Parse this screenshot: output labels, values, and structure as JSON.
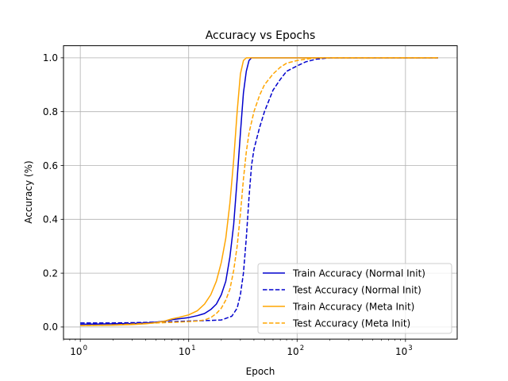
{
  "chart_data": {
    "type": "line",
    "title": "Accuracy vs Epochs",
    "xlabel": "Epoch",
    "ylabel": "Accuracy (%)",
    "xscale": "log",
    "xlim": [
      0.7,
      3000
    ],
    "ylim": [
      -0.045,
      1.045
    ],
    "grid": true,
    "legend_position": "lower-right",
    "x_ticks": [
      {
        "value": 1,
        "base": "10",
        "exp": "0"
      },
      {
        "value": 10,
        "base": "10",
        "exp": "1"
      },
      {
        "value": 100,
        "base": "10",
        "exp": "2"
      },
      {
        "value": 1000,
        "base": "10",
        "exp": "3"
      }
    ],
    "y_ticks": [
      {
        "value": 0.0,
        "label": "0.0"
      },
      {
        "value": 0.2,
        "label": "0.2"
      },
      {
        "value": 0.4,
        "label": "0.4"
      },
      {
        "value": 0.6,
        "label": "0.6"
      },
      {
        "value": 0.8,
        "label": "0.8"
      },
      {
        "value": 1.0,
        "label": "1.0"
      }
    ],
    "series": [
      {
        "name": "Train Accuracy (Normal Init)",
        "color": "#0000cd",
        "dash": "solid",
        "x": [
          1,
          2,
          3,
          4,
          5,
          6,
          7,
          8,
          10,
          12,
          14,
          16,
          18,
          20,
          22,
          24,
          26,
          28,
          30,
          32,
          34,
          36,
          38,
          40,
          50,
          100,
          1000,
          2000
        ],
        "y": [
          0.01,
          0.012,
          0.013,
          0.015,
          0.018,
          0.022,
          0.027,
          0.03,
          0.035,
          0.042,
          0.05,
          0.065,
          0.085,
          0.12,
          0.17,
          0.26,
          0.38,
          0.55,
          0.72,
          0.87,
          0.95,
          0.99,
          1.0,
          1.0,
          1.0,
          1.0,
          1.0,
          1.0
        ]
      },
      {
        "name": "Test Accuracy (Normal Init)",
        "color": "#0000cd",
        "dash": "dashed",
        "x": [
          1,
          2,
          3,
          5,
          10,
          15,
          20,
          25,
          28,
          30,
          32,
          34,
          36,
          38,
          40,
          45,
          50,
          60,
          70,
          80,
          100,
          120,
          150,
          200,
          300,
          1000,
          2000
        ],
        "y": [
          0.015,
          0.015,
          0.016,
          0.018,
          0.022,
          0.024,
          0.026,
          0.04,
          0.07,
          0.12,
          0.2,
          0.33,
          0.48,
          0.6,
          0.66,
          0.74,
          0.8,
          0.88,
          0.92,
          0.95,
          0.97,
          0.985,
          0.995,
          1.0,
          1.0,
          1.0,
          1.0
        ]
      },
      {
        "name": "Train Accuracy (Meta Init)",
        "color": "#ffa500",
        "dash": "solid",
        "x": [
          1,
          2,
          3,
          4,
          5,
          6,
          7,
          8,
          10,
          12,
          14,
          16,
          18,
          20,
          22,
          24,
          26,
          28,
          30,
          32,
          34,
          36,
          40,
          50,
          100,
          1000,
          2000
        ],
        "y": [
          0.005,
          0.007,
          0.009,
          0.012,
          0.016,
          0.022,
          0.03,
          0.035,
          0.045,
          0.06,
          0.085,
          0.12,
          0.17,
          0.24,
          0.33,
          0.46,
          0.62,
          0.8,
          0.94,
          0.99,
          1.0,
          1.0,
          1.0,
          1.0,
          1.0,
          1.0,
          1.0
        ]
      },
      {
        "name": "Test Accuracy (Meta Init)",
        "color": "#ffa500",
        "dash": "dashed",
        "x": [
          1,
          2,
          3,
          5,
          8,
          10,
          12,
          14,
          16,
          18,
          20,
          22,
          24,
          26,
          28,
          30,
          32,
          34,
          36,
          40,
          45,
          50,
          60,
          70,
          80,
          100,
          120,
          150,
          200,
          1000,
          2000
        ],
        "y": [
          0.005,
          0.008,
          0.011,
          0.015,
          0.018,
          0.02,
          0.022,
          0.026,
          0.035,
          0.05,
          0.07,
          0.1,
          0.14,
          0.21,
          0.3,
          0.42,
          0.55,
          0.65,
          0.72,
          0.8,
          0.86,
          0.9,
          0.94,
          0.965,
          0.98,
          0.99,
          0.995,
          1.0,
          1.0,
          1.0,
          1.0
        ]
      }
    ]
  }
}
